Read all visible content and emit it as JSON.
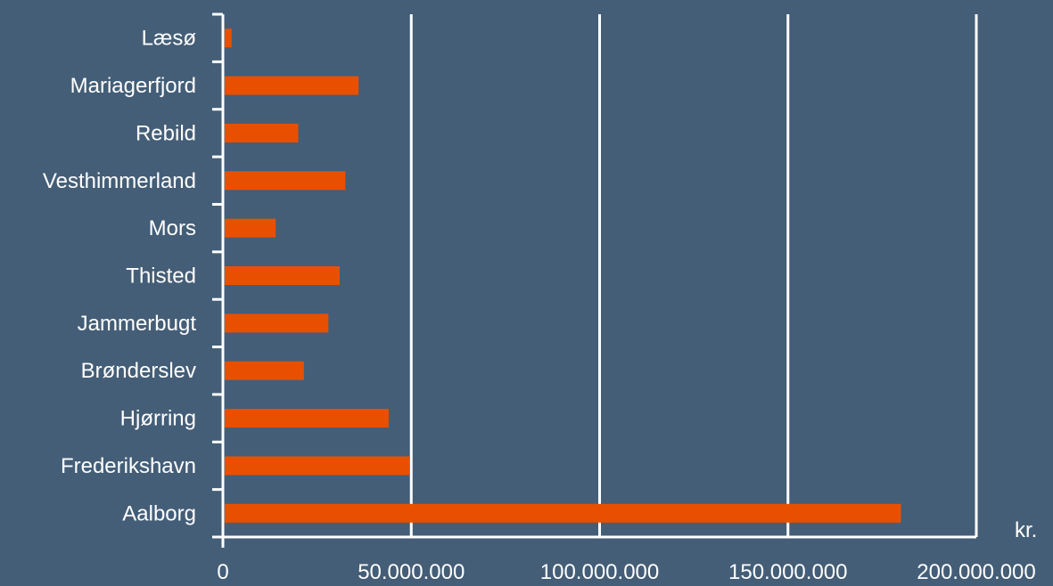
{
  "chart_data": {
    "type": "bar",
    "orientation": "horizontal",
    "categories": [
      "Aalborg",
      "Frederikshavn",
      "Hjørring",
      "Brønderslev",
      "Jammerbugt",
      "Thisted",
      "Mors",
      "Vesthimmerland",
      "Rebild",
      "Mariagerfjord",
      "Læsø"
    ],
    "values": [
      180000000,
      49500000,
      44000000,
      21500000,
      28000000,
      31000000,
      14000000,
      32500000,
      20000000,
      36000000,
      2300000
    ],
    "xlim": [
      0,
      200000000
    ],
    "x_ticks": [
      0,
      50000000,
      100000000,
      150000000,
      200000000
    ],
    "x_tick_labels": [
      "0",
      "50.000.000",
      "100.000.000",
      "150.000.000",
      "200.000.000"
    ],
    "x_unit_label": "kr.",
    "grid": "vertical",
    "colors": {
      "background": "#445e77",
      "bar": "#e85000",
      "grid": "#ffffff",
      "text": "#ffffff"
    }
  }
}
